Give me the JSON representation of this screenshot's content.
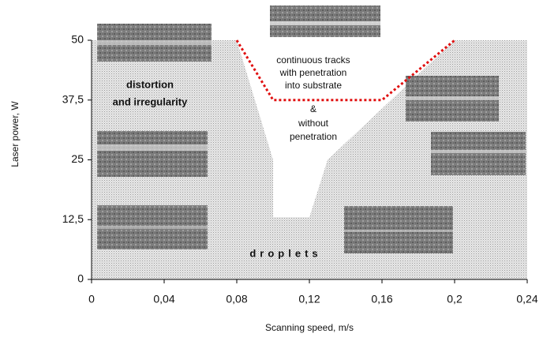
{
  "chart_data": {
    "type": "area",
    "x_label": "Scanning speed, m/s",
    "y_label": "Laser power, W",
    "xlim": [
      0,
      0.24
    ],
    "ylim": [
      0,
      50
    ],
    "xticks": [
      {
        "value": 0,
        "label": "0"
      },
      {
        "value": 0.04,
        "label": "0,04"
      },
      {
        "value": 0.08,
        "label": "0,08"
      },
      {
        "value": 0.12,
        "label": "0,12"
      },
      {
        "value": 0.16,
        "label": "0,16"
      },
      {
        "value": 0.2,
        "label": "0,2"
      },
      {
        "value": 0.24,
        "label": "0,24"
      }
    ],
    "yticks": [
      0,
      {
        "value": 12.5,
        "label": "12,5"
      },
      25,
      {
        "value": 37.5,
        "label": "37,5"
      },
      50
    ],
    "series": [
      {
        "color": "#ffffff",
        "x": [
          0.08,
          0.1,
          0.1,
          0.12,
          0.13,
          0.2
        ],
        "values": [
          50,
          25,
          13,
          13,
          25,
          50
        ]
      },
      {
        "color": "#e01010",
        "x": [
          0.08,
          0.1,
          0.16,
          0.2
        ],
        "values": [
          50,
          37.5,
          37.5,
          50
        ]
      }
    ],
    "annotations": [
      "distortion",
      "and irregularity",
      "continuous tracks",
      "with penetration",
      "into substrate",
      "&",
      "without",
      "penetration",
      "droplets"
    ]
  }
}
